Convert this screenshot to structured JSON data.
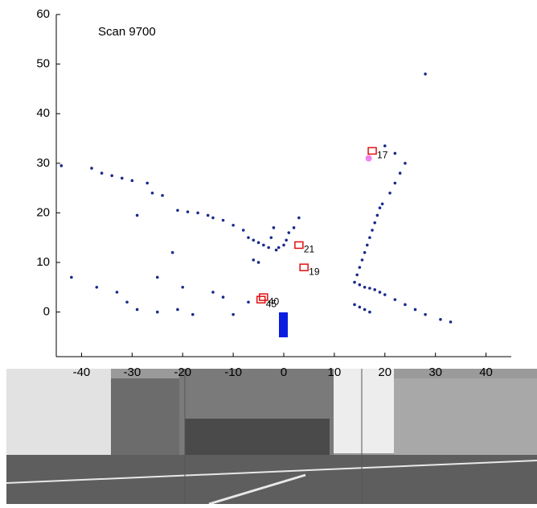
{
  "chart_data": {
    "type": "scatter",
    "annotation": "Scan 9700",
    "xlim": [
      -45,
      45
    ],
    "ylim": [
      -9,
      60
    ],
    "xticks": [
      -40,
      -30,
      -20,
      -10,
      0,
      10,
      20,
      30,
      40
    ],
    "yticks": [
      0,
      10,
      20,
      30,
      40,
      50,
      60
    ],
    "series": [
      {
        "color": "#1a2a8c",
        "x": [
          -44,
          -38,
          -36,
          -34,
          -32,
          -30,
          -27,
          -26,
          -24,
          -21,
          -19,
          -17,
          -15,
          -14,
          -12,
          -10,
          -8,
          -7,
          -6,
          -5,
          -4,
          -3,
          -1.5,
          -6,
          -5,
          -1,
          0,
          0.5,
          1,
          2,
          3,
          -2,
          -2.5,
          -22,
          -29,
          14,
          14.5,
          15,
          15.5,
          16,
          16.5,
          17,
          17.5,
          18,
          18.5,
          19,
          19.5,
          15,
          16,
          17,
          18,
          19,
          20,
          22,
          24,
          26,
          28,
          31,
          33,
          14,
          15,
          16,
          17,
          21,
          22,
          23,
          24,
          22,
          20,
          28,
          -42,
          -37,
          -33,
          -31,
          -29,
          -25,
          -21,
          -18,
          -14,
          -12,
          -10,
          -7,
          -25,
          -20
        ],
        "y": [
          29.5,
          29,
          28,
          27.5,
          27,
          26.5,
          26,
          24,
          23.5,
          20.5,
          20.2,
          20,
          19.5,
          19,
          18.5,
          17.5,
          16.5,
          15,
          14.5,
          14,
          13.5,
          13,
          12.5,
          10.5,
          10,
          13,
          13.5,
          14.5,
          16,
          17,
          19,
          17,
          15,
          12,
          19.5,
          6,
          7.5,
          9,
          10.5,
          12,
          13.5,
          15,
          16.5,
          18,
          19.5,
          21,
          21.8,
          5.5,
          5,
          4.8,
          4.5,
          4,
          3.5,
          2.5,
          1.5,
          0.5,
          -0.5,
          -1.5,
          -2,
          1.5,
          1,
          0.5,
          0,
          24,
          26,
          28,
          30,
          32,
          33.5,
          48,
          7,
          5,
          4,
          2,
          0.5,
          0,
          0.5,
          -0.5,
          4,
          3,
          -0.5,
          2,
          7,
          5
        ]
      },
      {
        "color": "#ee82ee",
        "x": [
          16.8
        ],
        "y": [
          31
        ]
      }
    ],
    "tracks": [
      {
        "label": "17",
        "x": 17.5,
        "y": 32.5
      },
      {
        "label": "21",
        "x": 3,
        "y": 13.5
      },
      {
        "label": "19",
        "x": 4,
        "y": 9
      },
      {
        "label": "40",
        "x": -4,
        "y": 3
      },
      {
        "label": "45",
        "x": -4.5,
        "y": 2.5
      }
    ],
    "track_color": "#e01010"
  }
}
